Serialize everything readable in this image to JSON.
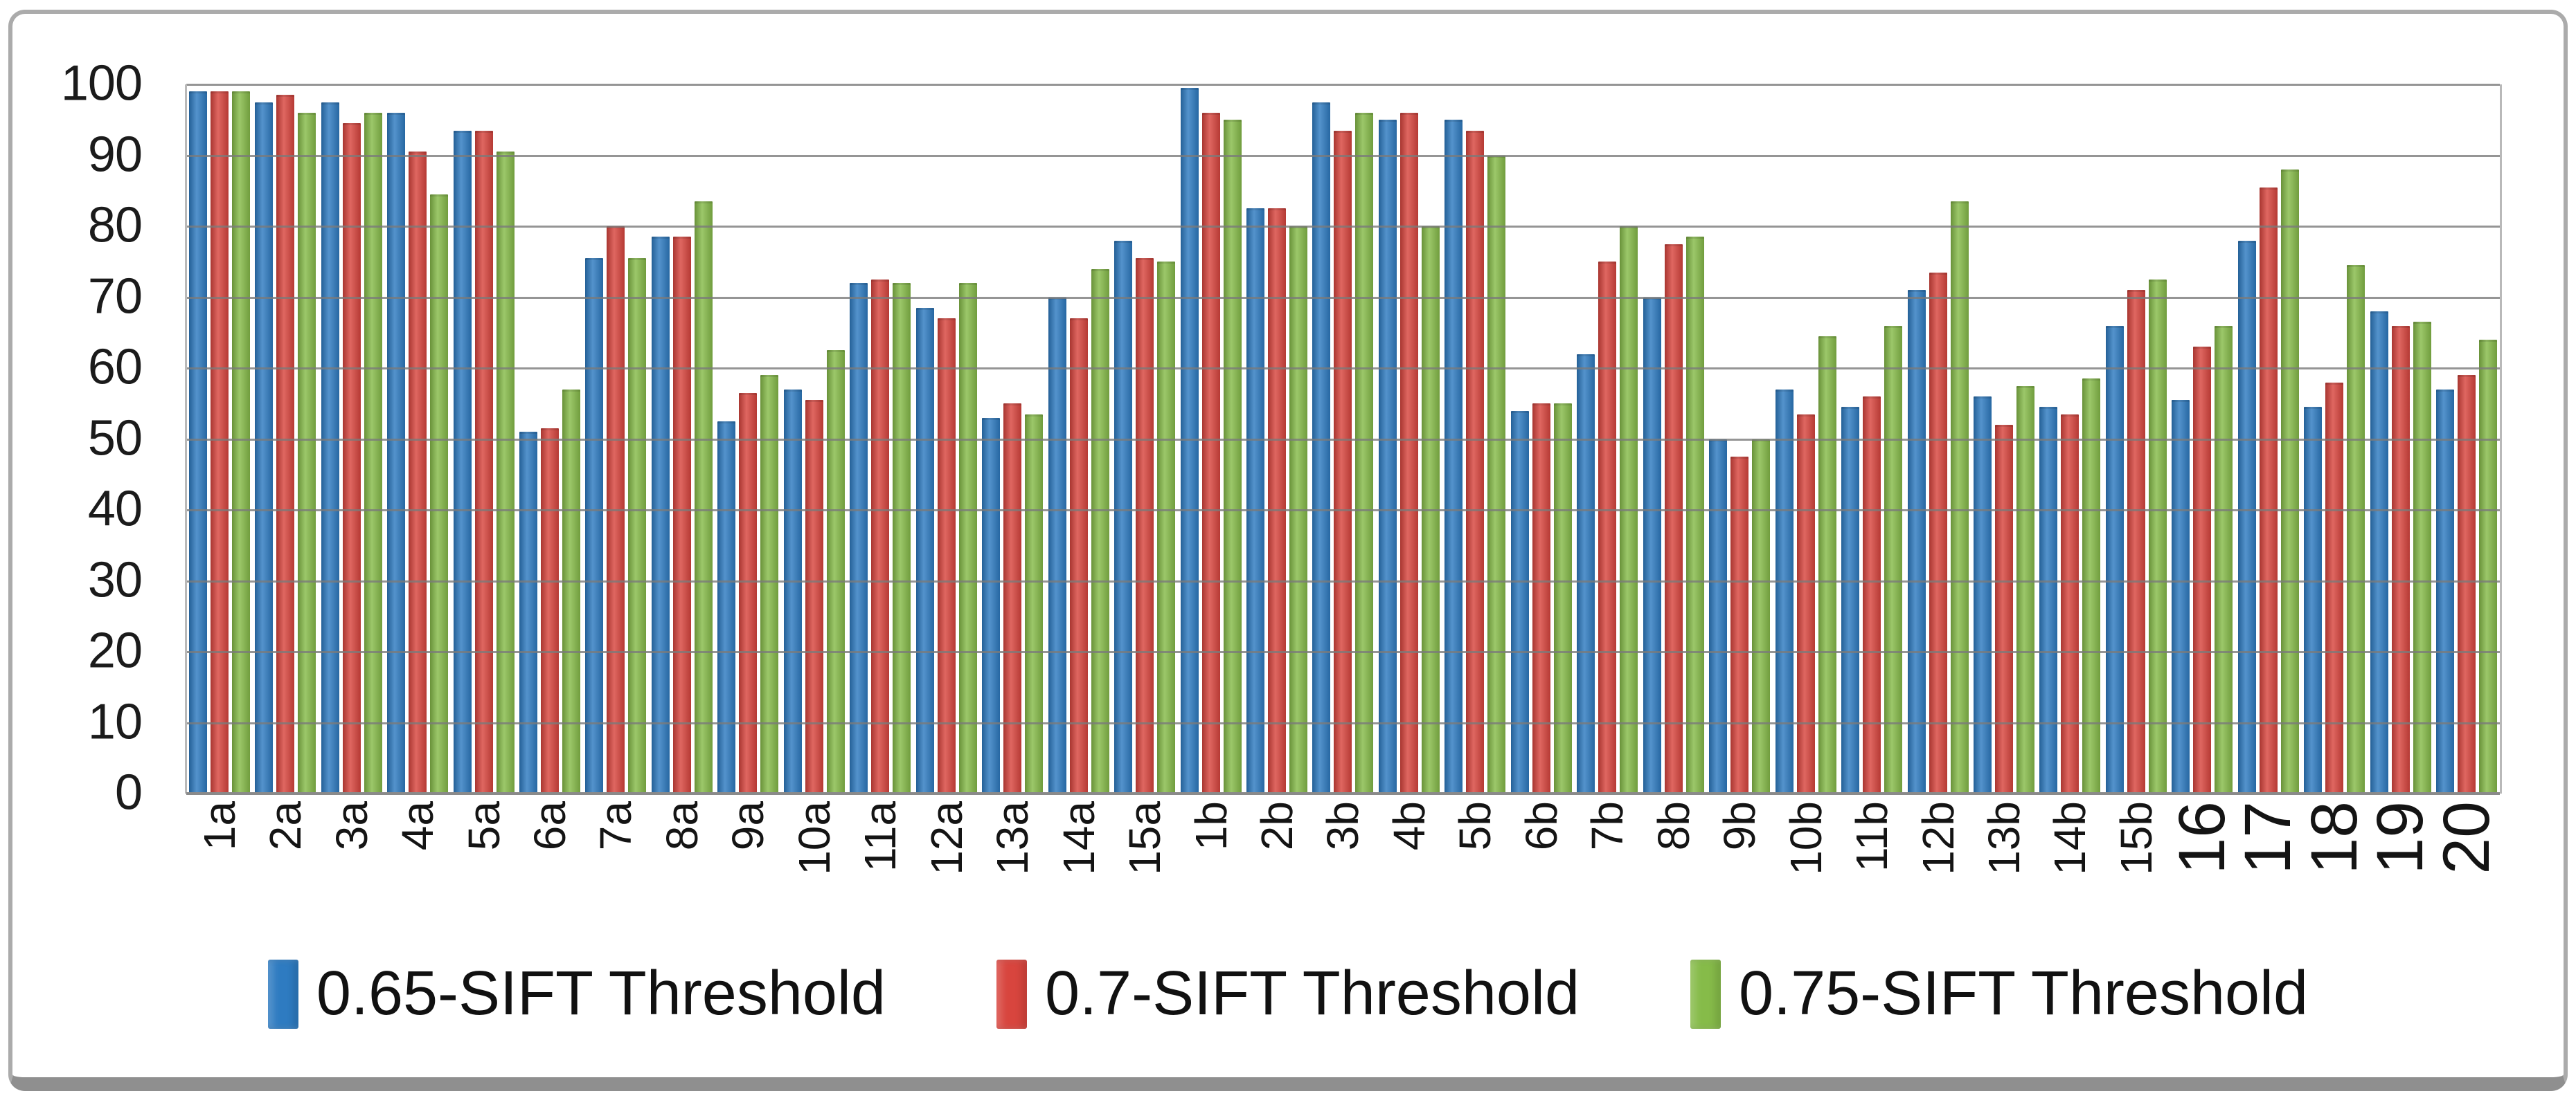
{
  "chart_data": {
    "type": "bar",
    "title": "",
    "xlabel": "",
    "ylabel": "",
    "ylim": [
      0,
      100
    ],
    "yticks": [
      0,
      10,
      20,
      30,
      40,
      50,
      60,
      70,
      80,
      90,
      100
    ],
    "grid": "horizontal gridlines every 10 units, drawn over the bars",
    "legend_position": "bottom",
    "categories": [
      "1a",
      "2a",
      "3a",
      "4a",
      "5a",
      "6a",
      "7a",
      "8a",
      "9a",
      "10a",
      "11a",
      "12a",
      "13a",
      "14a",
      "15a",
      "1b",
      "2b",
      "3b",
      "4b",
      "5b",
      "6b",
      "7b",
      "8b",
      "9b",
      "10b",
      "11b",
      "12b",
      "13b",
      "14b",
      "15b",
      "16",
      "17",
      "18",
      "19",
      "20"
    ],
    "xaxis": {
      "large_label_start_index": 30
    },
    "series": [
      {
        "name": "0.65-SIFT Threshold",
        "color": "#2E7BC1",
        "values": [
          99,
          97.5,
          97.5,
          96,
          93.5,
          51,
          75.5,
          78.5,
          52.5,
          57,
          72,
          68.5,
          53,
          70,
          78,
          99.5,
          82.5,
          97.5,
          95,
          95,
          54,
          62,
          70,
          50,
          57,
          54.5,
          71,
          56,
          54.5,
          66,
          55.5,
          78,
          54.5,
          68,
          57
        ]
      },
      {
        "name": "0.7-SIFT Threshold",
        "color": "#D8453E",
        "values": [
          99,
          98.5,
          94.5,
          90.5,
          93.5,
          51.5,
          80,
          78.5,
          56.5,
          55.5,
          72.5,
          67,
          55,
          67,
          75.5,
          96,
          82.5,
          93.5,
          96,
          93.5,
          55,
          75,
          77.5,
          47.5,
          53.5,
          56,
          73.5,
          52,
          53.5,
          71,
          63,
          85.5,
          58,
          66,
          59
        ]
      },
      {
        "name": "0.75-SIFT Threshold",
        "color": "#86BB49",
        "values": [
          99,
          96,
          96,
          84.5,
          90.5,
          57,
          75.5,
          83.5,
          59,
          62.5,
          72,
          72,
          53.5,
          74,
          75,
          95,
          80,
          96,
          80,
          90,
          55,
          80,
          78.5,
          50,
          64.5,
          66,
          83.5,
          57.5,
          58.5,
          72.5,
          66,
          88,
          74.5,
          66.5,
          64
        ]
      }
    ]
  },
  "frame": {
    "border_color": "#ABABAB",
    "bottom_bar_color": "#8F8F8F",
    "background": "#FFFFFF"
  },
  "colors": {
    "gridline": "#7A7A7A",
    "axis": "#8A8A8A",
    "text": "#1B1B1B"
  }
}
